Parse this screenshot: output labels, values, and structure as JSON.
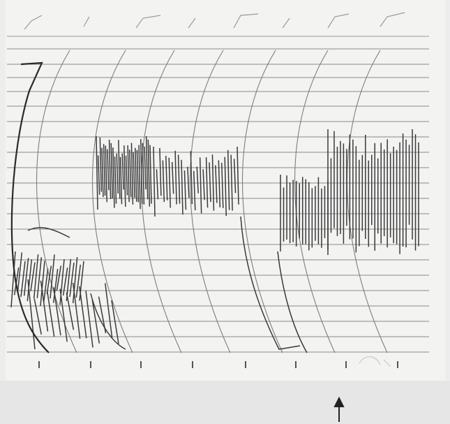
{
  "photo": {
    "paper_color": "#f1f1f0",
    "grid_color": "#7d7d7d",
    "ink_color": "#3a3a3a",
    "margin_color": "#e4e4e4"
  },
  "annotation": {
    "arrow_icon": "up-arrow-icon"
  }
}
